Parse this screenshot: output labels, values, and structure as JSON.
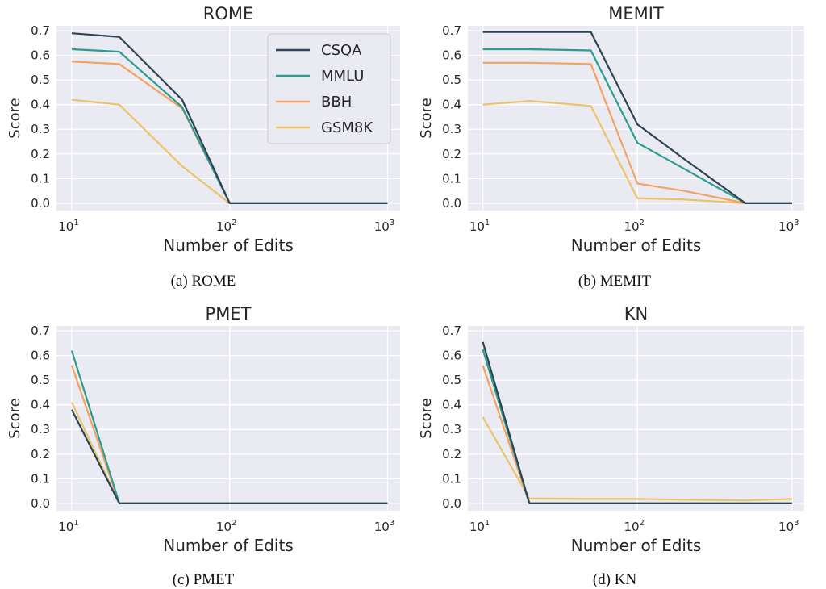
{
  "chart_data": [
    {
      "type": "line",
      "title": "ROME",
      "xlabel": "Number of Edits",
      "ylabel": "Score",
      "xscale": "log",
      "x": [
        10,
        20,
        50,
        100,
        200,
        500,
        1000
      ],
      "xlim": [
        8,
        1200
      ],
      "ylim": [
        -0.03,
        0.72
      ],
      "yticks": [
        0.0,
        0.1,
        0.2,
        0.3,
        0.4,
        0.5,
        0.6,
        0.7
      ],
      "xtick_labels": [
        "10",
        "10",
        "10"
      ],
      "xtick_exponents": [
        "1",
        "2",
        "3"
      ],
      "grid": true,
      "legend_position": "top-right",
      "series": [
        {
          "name": "CSQA",
          "color": "#2e4355",
          "values": [
            0.69,
            0.675,
            0.42,
            0.0,
            0.0,
            0.0,
            0.0
          ]
        },
        {
          "name": "MMLU",
          "color": "#2a9d8f",
          "values": [
            0.625,
            0.615,
            0.39,
            0.0,
            0.0,
            0.0,
            0.0
          ]
        },
        {
          "name": "BBH",
          "color": "#f4a261",
          "values": [
            0.575,
            0.565,
            0.385,
            0.0,
            0.0,
            0.0,
            0.0
          ]
        },
        {
          "name": "GSM8K",
          "color": "#e9c46a",
          "values": [
            0.42,
            0.4,
            0.15,
            0.0,
            0.0,
            0.0,
            0.0
          ]
        }
      ]
    },
    {
      "type": "line",
      "title": "MEMIT",
      "xlabel": "Number of Edits",
      "ylabel": "Score",
      "xscale": "log",
      "x": [
        10,
        20,
        50,
        100,
        200,
        500,
        1000
      ],
      "xlim": [
        8,
        1200
      ],
      "ylim": [
        -0.03,
        0.72
      ],
      "yticks": [
        0.0,
        0.1,
        0.2,
        0.3,
        0.4,
        0.5,
        0.6,
        0.7
      ],
      "xtick_labels": [
        "10",
        "10",
        "10"
      ],
      "xtick_exponents": [
        "1",
        "2",
        "3"
      ],
      "grid": true,
      "series": [
        {
          "name": "CSQA",
          "color": "#2e4355",
          "values": [
            0.695,
            0.695,
            0.695,
            0.32,
            0.18,
            0.0,
            0.0
          ]
        },
        {
          "name": "MMLU",
          "color": "#2a9d8f",
          "values": [
            0.625,
            0.625,
            0.62,
            0.245,
            0.14,
            0.0,
            0.0
          ]
        },
        {
          "name": "BBH",
          "color": "#f4a261",
          "values": [
            0.57,
            0.57,
            0.565,
            0.08,
            0.05,
            0.0,
            0.0
          ]
        },
        {
          "name": "GSM8K",
          "color": "#e9c46a",
          "values": [
            0.4,
            0.415,
            0.395,
            0.02,
            0.015,
            0.0,
            0.0
          ]
        }
      ]
    },
    {
      "type": "line",
      "title": "PMET",
      "xlabel": "Number of Edits",
      "ylabel": "Score",
      "xscale": "log",
      "x": [
        10,
        20,
        50,
        100,
        200,
        500,
        1000
      ],
      "xlim": [
        8,
        1200
      ],
      "ylim": [
        -0.03,
        0.72
      ],
      "yticks": [
        0.0,
        0.1,
        0.2,
        0.3,
        0.4,
        0.5,
        0.6,
        0.7
      ],
      "xtick_labels": [
        "10",
        "10",
        "10"
      ],
      "xtick_exponents": [
        "1",
        "2",
        "3"
      ],
      "grid": true,
      "series": [
        {
          "name": "CSQA",
          "color": "#2e4355",
          "values": [
            0.38,
            0.0,
            0.0,
            0.0,
            0.0,
            0.0,
            0.0
          ]
        },
        {
          "name": "MMLU",
          "color": "#2a9d8f",
          "values": [
            0.62,
            0.0,
            0.0,
            0.0,
            0.0,
            0.0,
            0.0
          ]
        },
        {
          "name": "BBH",
          "color": "#f4a261",
          "values": [
            0.56,
            0.0,
            0.0,
            0.0,
            0.0,
            0.0,
            0.0
          ]
        },
        {
          "name": "GSM8K",
          "color": "#e9c46a",
          "values": [
            0.41,
            0.0,
            0.0,
            0.0,
            0.0,
            0.0,
            0.0
          ]
        }
      ]
    },
    {
      "type": "line",
      "title": "KN",
      "xlabel": "Number of Edits",
      "ylabel": "Score",
      "xscale": "log",
      "x": [
        10,
        20,
        50,
        100,
        200,
        500,
        1000
      ],
      "xlim": [
        8,
        1200
      ],
      "ylim": [
        -0.03,
        0.72
      ],
      "yticks": [
        0.0,
        0.1,
        0.2,
        0.3,
        0.4,
        0.5,
        0.6,
        0.7
      ],
      "xtick_labels": [
        "10",
        "10",
        "10"
      ],
      "xtick_exponents": [
        "1",
        "2",
        "3"
      ],
      "grid": true,
      "series": [
        {
          "name": "CSQA",
          "color": "#2e4355",
          "values": [
            0.655,
            0.0,
            0.0,
            0.0,
            0.0,
            0.0,
            0.0
          ]
        },
        {
          "name": "MMLU",
          "color": "#2a9d8f",
          "values": [
            0.625,
            0.0,
            0.0,
            0.0,
            0.0,
            0.0,
            0.0
          ]
        },
        {
          "name": "BBH",
          "color": "#f4a261",
          "values": [
            0.56,
            0.0,
            0.0,
            0.0,
            0.0,
            0.0,
            0.0
          ]
        },
        {
          "name": "GSM8K",
          "color": "#e9c46a",
          "values": [
            0.35,
            0.02,
            0.018,
            0.018,
            0.015,
            0.012,
            0.018
          ]
        }
      ]
    }
  ],
  "captions": [
    "(a) ROME",
    "(b) MEMIT",
    "(c) PMET",
    "(d) KN"
  ],
  "legend": {
    "entries": [
      "CSQA",
      "MMLU",
      "BBH",
      "GSM8K"
    ]
  },
  "colors": {
    "plot_bg": "#eaeaf2",
    "grid": "#ffffff"
  }
}
